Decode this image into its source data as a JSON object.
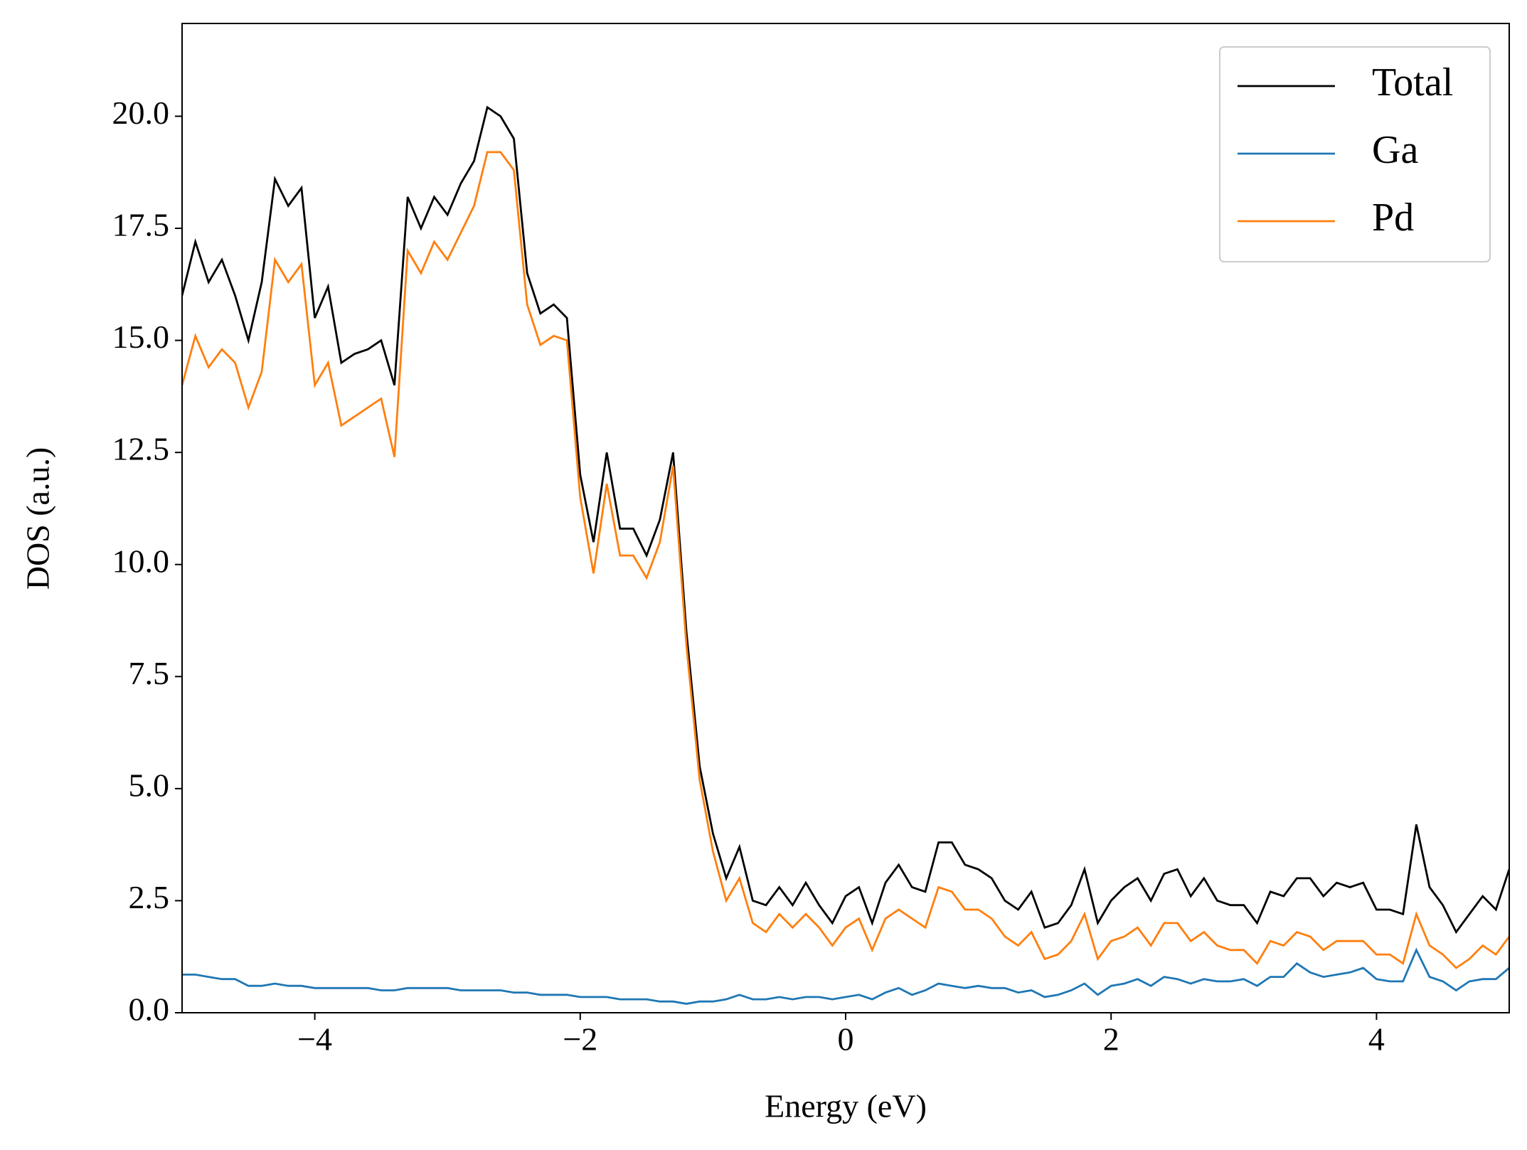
{
  "chart_data": {
    "type": "line",
    "xlabel": "Energy (eV)",
    "ylabel": "DOS (a.u.)",
    "xlim": [
      -5,
      5
    ],
    "ylim": [
      0,
      22.07
    ],
    "xticks": [
      {
        "value": -4,
        "label": "−4"
      },
      {
        "value": -2,
        "label": "−2"
      },
      0,
      2,
      4
    ],
    "yticks": [
      {
        "value": 0,
        "label": "0.0"
      },
      {
        "value": 2.5,
        "label": "2.5"
      },
      {
        "value": 5,
        "label": "5.0"
      },
      {
        "value": 7.5,
        "label": "7.5"
      },
      {
        "value": 10,
        "label": "10.0"
      },
      {
        "value": 12.5,
        "label": "12.5"
      },
      {
        "value": 15,
        "label": "15.0"
      },
      {
        "value": 17.5,
        "label": "17.5"
      },
      {
        "value": 20,
        "label": "20.0"
      }
    ],
    "legend": "upper right",
    "x": [
      -5,
      -4.9,
      -4.8,
      -4.7,
      -4.6,
      -4.5,
      -4.4,
      -4.3,
      -4.2,
      -4.1,
      -4,
      -3.9,
      -3.8,
      -3.7,
      -3.6,
      -3.5,
      -3.4,
      -3.3,
      -3.2,
      -3.1,
      -3,
      -2.9,
      -2.8,
      -2.7,
      -2.6,
      -2.5,
      -2.4,
      -2.3,
      -2.2,
      -2.1,
      -2,
      -1.9,
      -1.8,
      -1.7,
      -1.6,
      -1.5,
      -1.4,
      -1.3,
      -1.2,
      -1.1,
      -1,
      -0.9,
      -0.8,
      -0.7,
      -0.6,
      -0.5,
      -0.4,
      -0.3,
      -0.2,
      -0.1,
      0,
      0.1,
      0.2,
      0.3,
      0.4,
      0.5,
      0.6,
      0.7,
      0.8,
      0.9,
      1,
      1.1,
      1.2,
      1.3,
      1.4,
      1.5,
      1.6,
      1.7,
      1.8,
      1.9,
      2,
      2.1,
      2.2,
      2.3,
      2.4,
      2.5,
      2.6,
      2.7,
      2.8,
      2.9,
      3,
      3.1,
      3.2,
      3.3,
      3.4,
      3.5,
      3.6,
      3.7,
      3.8,
      3.9,
      4,
      4.1,
      4.2,
      4.3,
      4.4,
      4.5,
      4.6,
      4.7,
      4.8,
      4.9,
      5
    ],
    "series": [
      {
        "name": "Total",
        "color": "#000000",
        "values": [
          16.0,
          17.2,
          16.3,
          16.8,
          16.0,
          15.0,
          16.3,
          18.6,
          18.0,
          18.4,
          15.5,
          16.2,
          14.5,
          14.7,
          14.8,
          15.0,
          14.0,
          18.2,
          17.5,
          18.2,
          17.8,
          18.5,
          19.0,
          20.2,
          20.0,
          19.5,
          16.5,
          15.6,
          15.8,
          15.5,
          12.0,
          10.5,
          12.5,
          10.8,
          10.8,
          10.2,
          11.0,
          12.5,
          8.5,
          5.5,
          4.0,
          3.0,
          3.7,
          2.5,
          2.4,
          2.8,
          2.4,
          2.9,
          2.4,
          2.0,
          2.6,
          2.8,
          2.0,
          2.9,
          3.3,
          2.8,
          2.7,
          3.8,
          3.8,
          3.3,
          3.2,
          3.0,
          2.5,
          2.3,
          2.7,
          1.9,
          2.0,
          2.4,
          3.2,
          2.0,
          2.5,
          2.8,
          3.0,
          2.5,
          3.1,
          3.2,
          2.6,
          3.0,
          2.5,
          2.4,
          2.4,
          2.0,
          2.7,
          2.6,
          3.0,
          3.0,
          2.6,
          2.9,
          2.8,
          2.9,
          2.3,
          2.3,
          2.2,
          4.2,
          2.8,
          2.4,
          1.8,
          2.2,
          2.6,
          2.3,
          3.2
        ]
      },
      {
        "name": "Ga",
        "color": "#1f77b4",
        "values": [
          0.85,
          0.85,
          0.8,
          0.75,
          0.75,
          0.6,
          0.6,
          0.65,
          0.6,
          0.6,
          0.55,
          0.55,
          0.55,
          0.55,
          0.55,
          0.5,
          0.5,
          0.55,
          0.55,
          0.55,
          0.55,
          0.5,
          0.5,
          0.5,
          0.5,
          0.45,
          0.45,
          0.4,
          0.4,
          0.4,
          0.35,
          0.35,
          0.35,
          0.3,
          0.3,
          0.3,
          0.25,
          0.25,
          0.2,
          0.25,
          0.25,
          0.3,
          0.4,
          0.3,
          0.3,
          0.35,
          0.3,
          0.35,
          0.35,
          0.3,
          0.35,
          0.4,
          0.3,
          0.45,
          0.55,
          0.4,
          0.5,
          0.65,
          0.6,
          0.55,
          0.6,
          0.55,
          0.55,
          0.45,
          0.5,
          0.35,
          0.4,
          0.5,
          0.65,
          0.4,
          0.6,
          0.65,
          0.75,
          0.6,
          0.8,
          0.75,
          0.65,
          0.75,
          0.7,
          0.7,
          0.75,
          0.6,
          0.8,
          0.8,
          1.1,
          0.9,
          0.8,
          0.85,
          0.9,
          1.0,
          0.75,
          0.7,
          0.7,
          1.4,
          0.8,
          0.7,
          0.5,
          0.7,
          0.75,
          0.75,
          1.0
        ]
      },
      {
        "name": "Pd",
        "color": "#ff7f0e",
        "values": [
          14.0,
          15.1,
          14.4,
          14.8,
          14.5,
          13.5,
          14.3,
          16.8,
          16.3,
          16.7,
          14.0,
          14.5,
          13.1,
          13.3,
          13.5,
          13.7,
          12.4,
          17.0,
          16.5,
          17.2,
          16.8,
          17.4,
          18.0,
          19.2,
          19.2,
          18.8,
          15.8,
          14.9,
          15.1,
          15.0,
          11.5,
          9.8,
          11.8,
          10.2,
          10.2,
          9.7,
          10.5,
          12.2,
          8.2,
          5.2,
          3.6,
          2.5,
          3.0,
          2.0,
          1.8,
          2.2,
          1.9,
          2.2,
          1.9,
          1.5,
          1.9,
          2.1,
          1.4,
          2.1,
          2.3,
          2.1,
          1.9,
          2.8,
          2.7,
          2.3,
          2.3,
          2.1,
          1.7,
          1.5,
          1.8,
          1.2,
          1.3,
          1.6,
          2.2,
          1.2,
          1.6,
          1.7,
          1.9,
          1.5,
          2.0,
          2.0,
          1.6,
          1.8,
          1.5,
          1.4,
          1.4,
          1.1,
          1.6,
          1.5,
          1.8,
          1.7,
          1.4,
          1.6,
          1.6,
          1.6,
          1.3,
          1.3,
          1.1,
          2.2,
          1.5,
          1.3,
          1.0,
          1.2,
          1.5,
          1.3,
          1.7
        ]
      }
    ]
  }
}
